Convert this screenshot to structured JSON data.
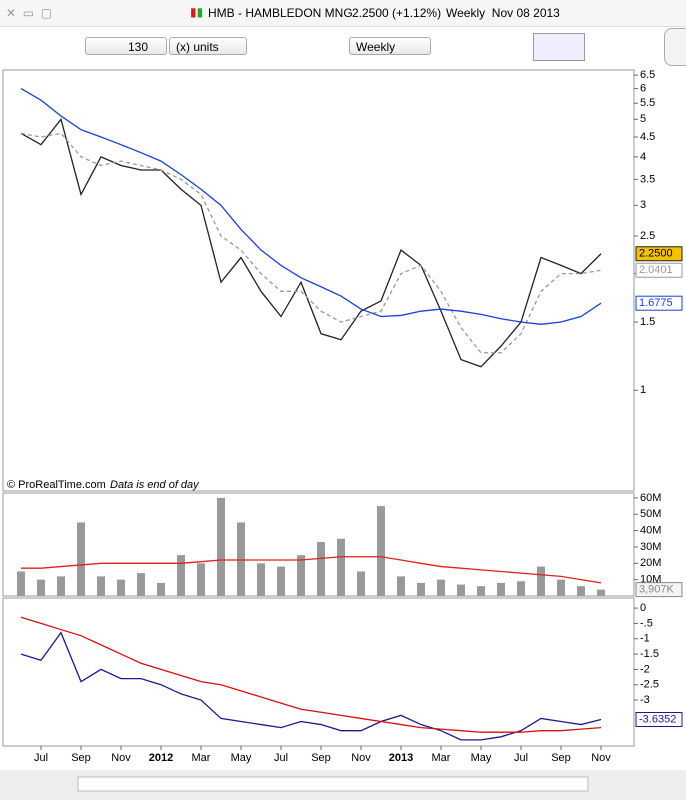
{
  "header": {
    "symbol": "HMB - HAMBLEDON MNG",
    "quote": "2.2500 (+1.12%)",
    "period": "Weekly  Nov 08 2013"
  },
  "controls": {
    "units_value": "130",
    "units": "(x) units",
    "period": "Weekly"
  },
  "footer": {
    "copyright": "© ProRealTime.com",
    "note": "Data is end of day"
  },
  "chart_data": [
    {
      "type": "line",
      "log_scale": true,
      "categories": [
        null,
        "Jul",
        null,
        "Sep",
        null,
        "Nov",
        null,
        "2012",
        null,
        "Mar",
        null,
        "May",
        null,
        "Jul",
        null,
        "Sep",
        null,
        "Nov",
        null,
        "2013",
        null,
        "Mar",
        null,
        "May",
        null,
        "Jul",
        null,
        "Sep",
        null,
        "Nov"
      ],
      "ylim": [
        0.55,
        6.7
      ],
      "yticks": [
        1,
        1.5,
        2,
        2.5,
        3,
        3.5,
        4,
        4.5,
        5,
        5.5,
        6,
        6.5
      ],
      "series": [
        {
          "color": "#222222",
          "values": [
            4.6,
            4.3,
            5.0,
            3.2,
            4.0,
            3.8,
            3.7,
            3.7,
            3.3,
            3.0,
            1.9,
            2.2,
            1.8,
            1.55,
            1.9,
            1.4,
            1.35,
            1.6,
            1.7,
            2.3,
            2.1,
            1.6,
            1.2,
            1.15,
            1.3,
            1.5,
            2.2,
            2.1,
            2.0,
            2.25
          ],
          "value_labels": [
            null,
            null,
            null,
            null,
            null,
            null,
            null,
            null,
            null,
            null,
            null,
            null,
            null,
            null,
            null,
            null,
            null,
            null,
            null,
            null,
            null,
            null,
            null,
            null,
            null,
            null,
            null,
            null,
            null,
            "2.2500"
          ]
        },
        {
          "color": "#999999",
          "dashed": true,
          "values": [
            4.6,
            4.5,
            4.6,
            4.0,
            3.8,
            3.9,
            3.8,
            3.7,
            3.5,
            3.2,
            2.5,
            2.3,
            2.0,
            1.8,
            1.8,
            1.6,
            1.5,
            1.55,
            1.6,
            2.0,
            2.1,
            1.8,
            1.45,
            1.25,
            1.25,
            1.4,
            1.8,
            2.0,
            2.0,
            2.0401
          ],
          "value_labels": [
            null,
            null,
            null,
            null,
            null,
            null,
            null,
            null,
            null,
            null,
            null,
            null,
            null,
            null,
            null,
            null,
            null,
            null,
            null,
            null,
            null,
            null,
            null,
            null,
            null,
            null,
            null,
            null,
            null,
            "2.0401"
          ]
        },
        {
          "color": "#1a3fd6",
          "values": [
            6.0,
            5.6,
            5.1,
            4.7,
            4.5,
            4.3,
            4.1,
            3.9,
            3.6,
            3.3,
            3.0,
            2.6,
            2.3,
            2.1,
            1.95,
            1.85,
            1.75,
            1.62,
            1.55,
            1.56,
            1.6,
            1.62,
            1.6,
            1.57,
            1.53,
            1.5,
            1.48,
            1.5,
            1.55,
            1.6775
          ],
          "value_labels": [
            null,
            null,
            null,
            null,
            null,
            null,
            null,
            null,
            null,
            null,
            null,
            null,
            null,
            null,
            null,
            null,
            null,
            null,
            null,
            null,
            null,
            null,
            null,
            null,
            null,
            null,
            null,
            null,
            null,
            "1.6775"
          ]
        }
      ]
    },
    {
      "type": "bar",
      "color": "#999999",
      "values": [
        15000000,
        10000000,
        12000000,
        45000000,
        12000000,
        10000000,
        14000000,
        8000000,
        25000000,
        20000000,
        60000000,
        45000000,
        20000000,
        18000000,
        25000000,
        33000000,
        35000000,
        15000000,
        55000000,
        12000000,
        8000000,
        10000000,
        7000000,
        6000000,
        8000000,
        9000000,
        18000000,
        10000000,
        6000000,
        3907000
      ],
      "value_labels": [
        null,
        null,
        null,
        null,
        null,
        null,
        null,
        null,
        null,
        null,
        null,
        null,
        null,
        null,
        null,
        null,
        null,
        null,
        null,
        null,
        null,
        null,
        null,
        null,
        null,
        null,
        null,
        null,
        null,
        "3,907K"
      ],
      "ylim": [
        0,
        63000000
      ],
      "yticks": [
        {
          "value": 10000000,
          "label": "10M"
        },
        {
          "value": 20000000,
          "label": "20M"
        },
        {
          "value": 30000000,
          "label": "30M"
        },
        {
          "value": 40000000,
          "label": "40M"
        },
        {
          "value": 50000000,
          "label": "50M"
        },
        {
          "value": 60000000,
          "label": "60M"
        }
      ],
      "series": [
        {
          "color": "#e0201b",
          "values": [
            17000000,
            17000000,
            18000000,
            19000000,
            20000000,
            20000000,
            20000000,
            20000000,
            20000000,
            21000000,
            22000000,
            22000000,
            22000000,
            22000000,
            22000000,
            23000000,
            24000000,
            24000000,
            24000000,
            22000000,
            20000000,
            18000000,
            17000000,
            16000000,
            15000000,
            14000000,
            13000000,
            12000000,
            10000000,
            8000000
          ]
        }
      ]
    },
    {
      "type": "line",
      "ylim": [
        -4.5,
        0.33
      ],
      "yticks": [
        0,
        {
          "value": -0.5,
          "label": "-.5"
        },
        -1,
        -1.5,
        -2,
        -2.5,
        -3
      ],
      "series": [
        {
          "color": "#1a1a8c",
          "values": [
            -1.5,
            -1.7,
            -0.8,
            -2.4,
            -2.0,
            -2.3,
            -2.3,
            -2.5,
            -2.8,
            -3.0,
            -3.6,
            -3.7,
            -3.8,
            -3.9,
            -3.7,
            -3.8,
            -4.0,
            -4.0,
            -3.7,
            -3.5,
            -3.8,
            -4.0,
            -4.3,
            -4.3,
            -4.2,
            -4.0,
            -3.6,
            -3.7,
            -3.8,
            -3.6352
          ],
          "value_labels": [
            null,
            null,
            null,
            null,
            null,
            null,
            null,
            null,
            null,
            null,
            null,
            null,
            null,
            null,
            null,
            null,
            null,
            null,
            null,
            null,
            null,
            null,
            null,
            null,
            null,
            null,
            null,
            null,
            null,
            "-3.6352"
          ]
        },
        {
          "color": "#d41010",
          "values": [
            -0.3,
            -0.5,
            -0.7,
            -0.9,
            -1.2,
            -1.5,
            -1.8,
            -2.0,
            -2.2,
            -2.4,
            -2.5,
            -2.7,
            -2.9,
            -3.1,
            -3.3,
            -3.4,
            -3.5,
            -3.6,
            -3.7,
            -3.8,
            -3.9,
            -3.95,
            -4.0,
            -4.05,
            -4.05,
            -4.05,
            -4.0,
            -4.0,
            -3.95,
            -3.9
          ]
        }
      ]
    }
  ]
}
